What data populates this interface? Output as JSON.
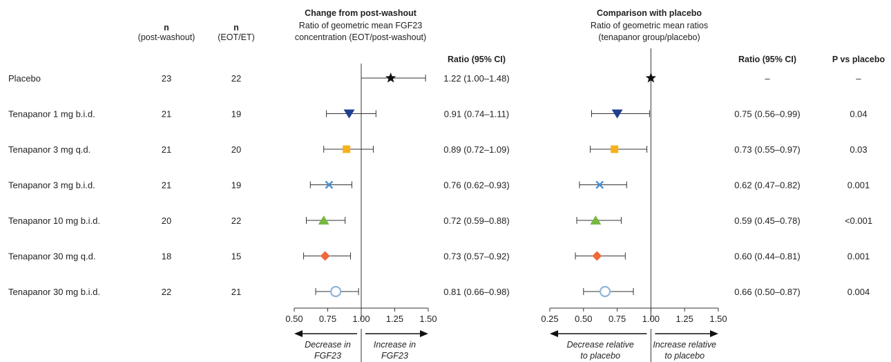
{
  "header": {
    "n_post_title": "n",
    "n_post_sub": "(post-washout)",
    "n_eot_title": "n",
    "n_eot_sub": "(EOT/ET)",
    "ratio_col": "Ratio (95% CI)",
    "p_col": "P vs placebo"
  },
  "chart_data": [
    {
      "type": "forest",
      "title": "Change from post-washout",
      "subtitle_lines": [
        "Ratio of geometric mean FGF23",
        "concentration (EOT/post-washout)"
      ],
      "xlim": [
        0.5,
        1.5
      ],
      "xticks": [
        0.5,
        0.75,
        1.0,
        1.25,
        1.5
      ],
      "xtick_labels": [
        "0.50",
        "0.75",
        "1.00",
        "1.25",
        "1.50"
      ],
      "reference_line": 1.0,
      "arrow_left_label_lines": [
        "Decrease in",
        "FGF23"
      ],
      "arrow_right_label_lines": [
        "Increase in",
        "FGF23"
      ],
      "rows": [
        {
          "group": "Placebo",
          "n_post": "23",
          "n_eot": "22",
          "ratio": 1.22,
          "lo": 1.0,
          "hi": 1.48,
          "ratio_text": "1.22 (1.00–1.48)",
          "marker": "star",
          "color": "#111111"
        },
        {
          "group": "Tenapanor 1 mg b.i.d.",
          "n_post": "21",
          "n_eot": "19",
          "ratio": 0.91,
          "lo": 0.74,
          "hi": 1.11,
          "ratio_text": "0.91 (0.74–1.11)",
          "marker": "triangle-down",
          "color": "#1f3f8f"
        },
        {
          "group": "Tenapanor 3 mg q.d.",
          "n_post": "21",
          "n_eot": "20",
          "ratio": 0.89,
          "lo": 0.72,
          "hi": 1.09,
          "ratio_text": "0.89 (0.72–1.09)",
          "marker": "square",
          "color": "#f7b21b"
        },
        {
          "group": "Tenapanor 3 mg b.i.d.",
          "n_post": "21",
          "n_eot": "19",
          "ratio": 0.76,
          "lo": 0.62,
          "hi": 0.93,
          "ratio_text": "0.76 (0.62–0.93)",
          "marker": "x",
          "color": "#4a8fd0"
        },
        {
          "group": "Tenapanor 10 mg b.i.d.",
          "n_post": "20",
          "n_eot": "22",
          "ratio": 0.72,
          "lo": 0.59,
          "hi": 0.88,
          "ratio_text": "0.72 (0.59–0.88)",
          "marker": "triangle-up",
          "color": "#76b842"
        },
        {
          "group": "Tenapanor 30 mg q.d.",
          "n_post": "18",
          "n_eot": "15",
          "ratio": 0.73,
          "lo": 0.57,
          "hi": 0.92,
          "ratio_text": "0.73 (0.57–0.92)",
          "marker": "diamond",
          "color": "#ec6a3c"
        },
        {
          "group": "Tenapanor 30 mg b.i.d.",
          "n_post": "22",
          "n_eot": "21",
          "ratio": 0.81,
          "lo": 0.66,
          "hi": 0.98,
          "ratio_text": "0.81 (0.66–0.98)",
          "marker": "circle-open",
          "color": "#8fb5d9"
        }
      ]
    },
    {
      "type": "forest",
      "title": "Comparison with placebo",
      "subtitle_lines": [
        "Ratio of geometric mean ratios",
        "(tenapanor group/placebo)"
      ],
      "xlim": [
        0.25,
        1.5
      ],
      "xticks": [
        0.25,
        0.5,
        0.75,
        1.0,
        1.25,
        1.5
      ],
      "xtick_labels": [
        "0.25",
        "0.50",
        "0.75",
        "1.00",
        "1.25",
        "1.50"
      ],
      "reference_line": 1.0,
      "arrow_left_label_lines": [
        "Decrease relative",
        "to placebo"
      ],
      "arrow_right_label_lines": [
        "Increase relative",
        "to placebo"
      ],
      "rows": [
        {
          "group": "Placebo",
          "ratio": 1.0,
          "lo": null,
          "hi": null,
          "ratio_text": "–",
          "p": "–",
          "marker": "star",
          "color": "#111111"
        },
        {
          "group": "Tenapanor 1 mg b.i.d.",
          "ratio": 0.75,
          "lo": 0.56,
          "hi": 0.99,
          "ratio_text": "0.75 (0.56–0.99)",
          "p": "0.04",
          "marker": "triangle-down",
          "color": "#1f3f8f"
        },
        {
          "group": "Tenapanor 3 mg q.d.",
          "ratio": 0.73,
          "lo": 0.55,
          "hi": 0.97,
          "ratio_text": "0.73 (0.55–0.97)",
          "p": "0.03",
          "marker": "square",
          "color": "#f7b21b"
        },
        {
          "group": "Tenapanor 3 mg b.i.d.",
          "ratio": 0.62,
          "lo": 0.47,
          "hi": 0.82,
          "ratio_text": "0.62 (0.47–0.82)",
          "p": "0.001",
          "marker": "x",
          "color": "#4a8fd0"
        },
        {
          "group": "Tenapanor 10 mg b.i.d.",
          "ratio": 0.59,
          "lo": 0.45,
          "hi": 0.78,
          "ratio_text": "0.59 (0.45–0.78)",
          "p": "<0.001",
          "marker": "triangle-up",
          "color": "#76b842"
        },
        {
          "group": "Tenapanor 30 mg q.d.",
          "ratio": 0.6,
          "lo": 0.44,
          "hi": 0.81,
          "ratio_text": "0.60 (0.44–0.81)",
          "p": "0.001",
          "marker": "diamond",
          "color": "#ec6a3c"
        },
        {
          "group": "Tenapanor 30 mg b.i.d.",
          "ratio": 0.66,
          "lo": 0.5,
          "hi": 0.87,
          "ratio_text": "0.66 (0.50–0.87)",
          "p": "0.004",
          "marker": "circle-open",
          "color": "#8fb5d9"
        }
      ]
    }
  ]
}
